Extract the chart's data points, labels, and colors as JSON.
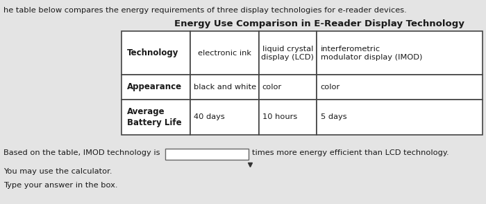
{
  "bg_color": "#e4e4e4",
  "top_text": "he table below compares the energy requirements of three display technologies for e-reader devices.",
  "title": "Energy Use Comparison in E-Reader Display Technology",
  "col0_h": "Technology",
  "col1_h": "electronic ink",
  "col2_h": "liquid crystal\ndisplay (LCD)",
  "col3_h": "interferometric\nmodulator display (IMOD)",
  "row1_label": "Appearance",
  "row1_c1": "black and white",
  "row1_c2": "color",
  "row1_c3": "color",
  "row2_label": "Average\nBattery Life",
  "row2_c1": "40 days",
  "row2_c2": "10 hours",
  "row2_c3": "5 days",
  "bottom1": "Based on the table, IMOD technology is",
  "bottom2": "times more energy efficient than LCD technology.",
  "bottom3": "You may use the calculator.",
  "bottom4": "Type your answer in the box.",
  "text_color": "#1a1a1a",
  "border_color": "#444444",
  "table_bg": "#ffffff"
}
